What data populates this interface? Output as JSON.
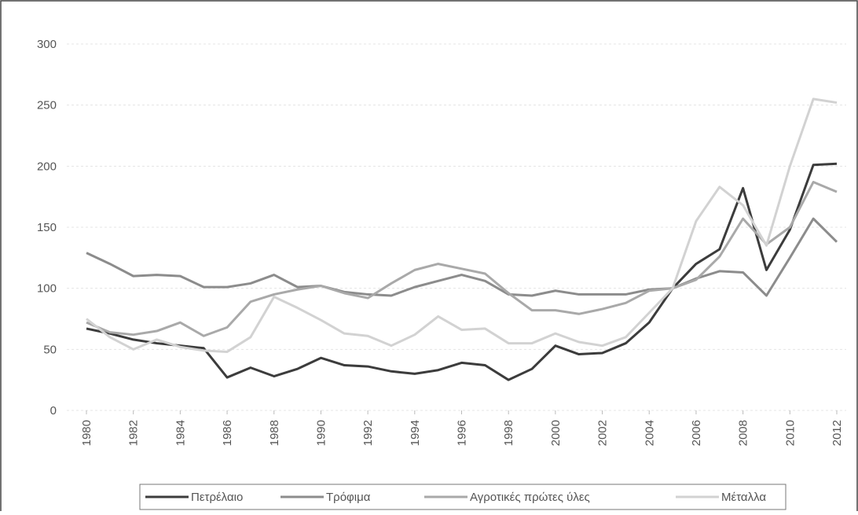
{
  "chart_data": {
    "type": "line",
    "x": [
      1980,
      1981,
      1982,
      1983,
      1984,
      1985,
      1986,
      1987,
      1988,
      1989,
      1990,
      1991,
      1992,
      1993,
      1994,
      1995,
      1996,
      1997,
      1998,
      1999,
      2000,
      2001,
      2002,
      2003,
      2004,
      2005,
      2006,
      2007,
      2008,
      2009,
      2010,
      2011,
      2012
    ],
    "xlim": [
      1980,
      2012
    ],
    "xticks": [
      1980,
      1982,
      1984,
      1986,
      1988,
      1990,
      1992,
      1994,
      1996,
      1998,
      2000,
      2002,
      2004,
      2006,
      2008,
      2010,
      2012
    ],
    "ylim": [
      0,
      300
    ],
    "yticks": [
      0,
      50,
      100,
      150,
      200,
      250,
      300
    ],
    "grid": true,
    "legend": "bottom",
    "series": [
      {
        "name": "Πετρέλαιο",
        "color": "#3c3c3c",
        "values": [
          67,
          63,
          58,
          55,
          53,
          51,
          27,
          35,
          28,
          34,
          43,
          37,
          36,
          32,
          30,
          33,
          39,
          37,
          25,
          34,
          53,
          46,
          47,
          55,
          72,
          100,
          120,
          132,
          182,
          115,
          148,
          201,
          202
        ]
      },
      {
        "name": "Τρόφιμα",
        "color": "#8c8c8c",
        "values": [
          129,
          120,
          110,
          111,
          110,
          101,
          101,
          104,
          111,
          101,
          102,
          97,
          95,
          94,
          101,
          106,
          111,
          106,
          95,
          94,
          98,
          95,
          95,
          95,
          99,
          100,
          108,
          114,
          113,
          94,
          125,
          157,
          138
        ]
      },
      {
        "name": "Αγροτικές πρώτες ύλες",
        "color": "#a9a9a9",
        "values": [
          72,
          64,
          62,
          65,
          72,
          61,
          68,
          89,
          95,
          99,
          102,
          96,
          92,
          104,
          115,
          120,
          116,
          112,
          96,
          82,
          82,
          79,
          83,
          88,
          98,
          100,
          107,
          126,
          157,
          136,
          150,
          187,
          179
        ]
      },
      {
        "name": "Μέταλλα",
        "color": "#d2d2d2",
        "values": [
          75,
          60,
          50,
          58,
          52,
          49,
          48,
          60,
          93,
          84,
          74,
          63,
          61,
          53,
          62,
          77,
          66,
          67,
          55,
          55,
          63,
          56,
          53,
          60,
          80,
          100,
          155,
          183,
          168,
          135,
          200,
          255,
          252
        ]
      }
    ]
  }
}
